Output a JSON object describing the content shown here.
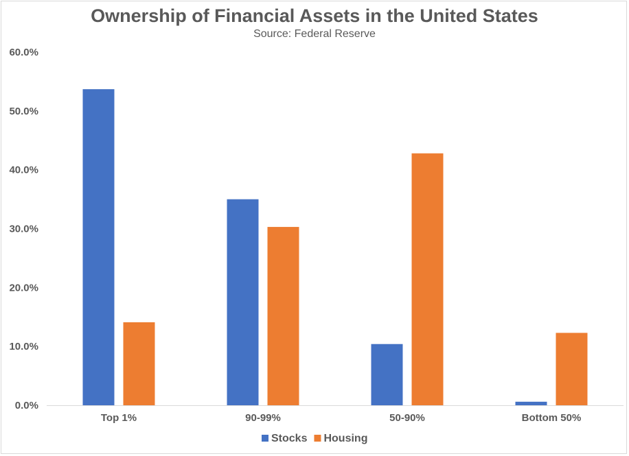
{
  "chart_data": {
    "type": "bar",
    "title": "Ownership of Financial Assets in the United States",
    "subtitle": "Source: Federal Reserve",
    "categories": [
      "Top 1%",
      "90-99%",
      "50-90%",
      "Bottom 50%"
    ],
    "series": [
      {
        "name": "Stocks",
        "color": "#4472c4",
        "values": [
          53.7,
          35.0,
          10.4,
          0.6
        ]
      },
      {
        "name": "Housing",
        "color": "#ed7d31",
        "values": [
          14.1,
          30.3,
          42.8,
          12.3
        ]
      }
    ],
    "yticks": [
      "0.0%",
      "10.0%",
      "20.0%",
      "30.0%",
      "40.0%",
      "50.0%",
      "60.0%"
    ],
    "ylim": [
      0,
      60
    ],
    "grid": false,
    "legend": "bottom"
  }
}
